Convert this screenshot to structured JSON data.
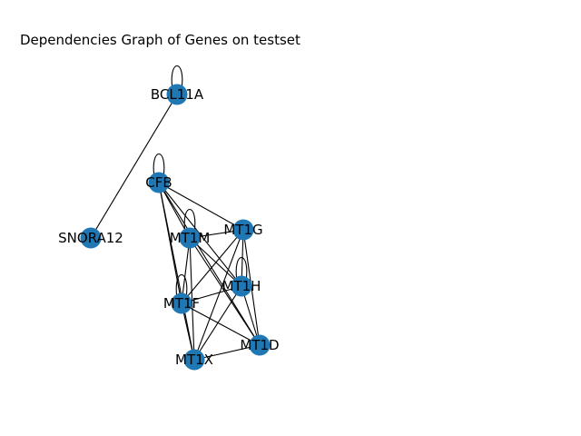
{
  "title": "Dependencies Graph of Genes on testset",
  "colors": {
    "node": "#1f77b4",
    "edge": "#000000",
    "background": "#ffffff"
  },
  "graph": {
    "nodes": [
      {
        "id": "BCL11A",
        "label": "BCL11A"
      },
      {
        "id": "CFB",
        "label": "CFB"
      },
      {
        "id": "SNORA12",
        "label": "SNORA12"
      },
      {
        "id": "MT1M",
        "label": "MT1M"
      },
      {
        "id": "MT1G",
        "label": "MT1G"
      },
      {
        "id": "MT1H",
        "label": "MT1H"
      },
      {
        "id": "MT1F",
        "label": "MT1F"
      },
      {
        "id": "MT1D",
        "label": "MT1D"
      },
      {
        "id": "MT1X",
        "label": "MT1X"
      }
    ],
    "edges": [
      [
        "BCL11A",
        "SNORA12"
      ],
      [
        "CFB",
        "MT1G"
      ],
      [
        "CFB",
        "MT1M"
      ],
      [
        "CFB",
        "MT1H"
      ],
      [
        "CFB",
        "MT1F"
      ],
      [
        "CFB",
        "MT1X"
      ],
      [
        "CFB",
        "MT1D"
      ],
      [
        "MT1M",
        "MT1G"
      ],
      [
        "MT1M",
        "MT1H"
      ],
      [
        "MT1M",
        "MT1F"
      ],
      [
        "MT1M",
        "MT1X"
      ],
      [
        "MT1M",
        "MT1D"
      ],
      [
        "MT1G",
        "MT1H"
      ],
      [
        "MT1G",
        "MT1F"
      ],
      [
        "MT1G",
        "MT1X"
      ],
      [
        "MT1G",
        "MT1D"
      ],
      [
        "MT1H",
        "MT1F"
      ],
      [
        "MT1H",
        "MT1X"
      ],
      [
        "MT1H",
        "MT1D"
      ],
      [
        "MT1F",
        "MT1X"
      ],
      [
        "MT1F",
        "MT1D"
      ],
      [
        "MT1X",
        "MT1D"
      ]
    ],
    "self_loops": [
      "BCL11A",
      "CFB",
      "MT1M",
      "MT1H",
      "MT1F"
    ]
  }
}
